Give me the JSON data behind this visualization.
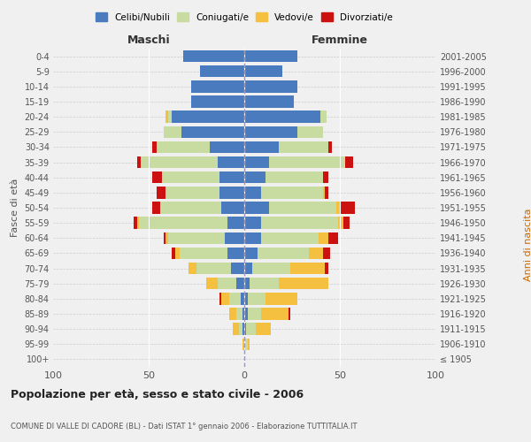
{
  "age_groups": [
    "100+",
    "95-99",
    "90-94",
    "85-89",
    "80-84",
    "75-79",
    "70-74",
    "65-69",
    "60-64",
    "55-59",
    "50-54",
    "45-49",
    "40-44",
    "35-39",
    "30-34",
    "25-29",
    "20-24",
    "15-19",
    "10-14",
    "5-9",
    "0-4"
  ],
  "birth_years": [
    "≤ 1905",
    "1906-1910",
    "1911-1915",
    "1916-1920",
    "1921-1925",
    "1926-1930",
    "1931-1935",
    "1936-1940",
    "1941-1945",
    "1946-1950",
    "1951-1955",
    "1956-1960",
    "1961-1965",
    "1966-1970",
    "1971-1975",
    "1976-1980",
    "1981-1985",
    "1986-1990",
    "1991-1995",
    "1996-2000",
    "2001-2005"
  ],
  "colors": {
    "celibi": "#4a7bbf",
    "coniugati": "#c8dba0",
    "vedovi": "#f5c040",
    "divorziati": "#cc1111"
  },
  "maschi": {
    "celibi": [
      0,
      0,
      1,
      1,
      2,
      4,
      7,
      9,
      10,
      9,
      12,
      13,
      13,
      14,
      18,
      33,
      38,
      28,
      28,
      23,
      32
    ],
    "coniugati": [
      0,
      0,
      2,
      3,
      6,
      10,
      18,
      25,
      30,
      46,
      32,
      28,
      30,
      40,
      28,
      9,
      2,
      0,
      0,
      0,
      0
    ],
    "vedovi": [
      0,
      1,
      3,
      4,
      4,
      6,
      4,
      2,
      1,
      1,
      0,
      0,
      0,
      0,
      0,
      0,
      1,
      0,
      0,
      0,
      0
    ],
    "divorziati": [
      0,
      0,
      0,
      0,
      1,
      0,
      0,
      2,
      1,
      2,
      4,
      5,
      5,
      2,
      2,
      0,
      0,
      0,
      0,
      0,
      0
    ]
  },
  "femmine": {
    "celibi": [
      0,
      0,
      1,
      2,
      2,
      3,
      4,
      7,
      9,
      9,
      13,
      9,
      11,
      13,
      18,
      28,
      40,
      26,
      28,
      20,
      28
    ],
    "coniugati": [
      0,
      2,
      5,
      7,
      9,
      15,
      20,
      27,
      30,
      40,
      35,
      32,
      30,
      40,
      26,
      13,
      3,
      0,
      0,
      0,
      0
    ],
    "vedovi": [
      0,
      1,
      8,
      14,
      17,
      26,
      18,
      7,
      5,
      3,
      2,
      1,
      0,
      0,
      0,
      0,
      0,
      0,
      0,
      0,
      0
    ],
    "divorziati": [
      0,
      0,
      0,
      1,
      0,
      0,
      2,
      4,
      5,
      3,
      8,
      2,
      3,
      4,
      2,
      0,
      0,
      0,
      0,
      0,
      0
    ]
  },
  "xlim": 100,
  "title": "Popolazione per età, sesso e stato civile - 2006",
  "subtitle": "COMUNE DI VALLE DI CADORE (BL) - Dati ISTAT 1° gennaio 2006 - Elaborazione TUTTITALIA.IT",
  "ylabel_left": "Fasce di età",
  "ylabel_right": "Anni di nascita",
  "legend_labels": [
    "Celibi/Nubili",
    "Coniugati/e",
    "Vedovi/e",
    "Divorziati/e"
  ],
  "maschi_label": "Maschi",
  "femmine_label": "Femmine",
  "bg_color": "#f0f0f0"
}
